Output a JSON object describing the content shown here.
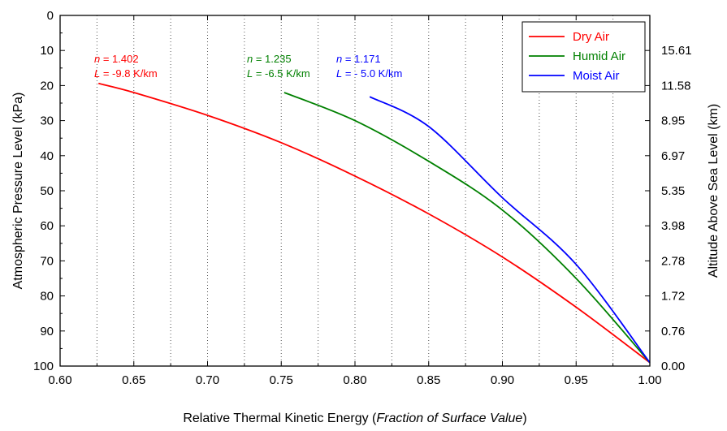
{
  "chart_data": {
    "type": "line",
    "xlabel_main": "Relative Thermal Kinetic Energy (",
    "xlabel_italic": "Fraction of Surface Value",
    "xlabel_end": ")",
    "ylabel_left": "Atmospheric Pressure Level (kPa)",
    "ylabel_right": "Altitude Above Sea Level (km)",
    "xlim": [
      0.6,
      1.0
    ],
    "ylim": [
      0,
      100
    ],
    "y_inverted": true,
    "x_ticks": [
      "0.60",
      "0.65",
      "0.70",
      "0.75",
      "0.80",
      "0.85",
      "0.90",
      "0.95",
      "1.00"
    ],
    "y_ticks_left": [
      "0",
      "10",
      "20",
      "30",
      "40",
      "50",
      "60",
      "70",
      "80",
      "90",
      "100"
    ],
    "y_ticks_right": [
      {
        "pressure": 10,
        "label": "15.61"
      },
      {
        "pressure": 20,
        "label": "11.58"
      },
      {
        "pressure": 30,
        "label": "8.95"
      },
      {
        "pressure": 40,
        "label": "6.97"
      },
      {
        "pressure": 50,
        "label": "5.35"
      },
      {
        "pressure": 60,
        "label": "3.98"
      },
      {
        "pressure": 70,
        "label": "2.78"
      },
      {
        "pressure": 80,
        "label": "1.72"
      },
      {
        "pressure": 90,
        "label": "0.76"
      },
      {
        "pressure": 100,
        "label": "0.00"
      }
    ],
    "grid": "vertical dotted",
    "legend_position": "top-right",
    "series": [
      {
        "name": "Dry Air",
        "color": "#ff0000",
        "n": 1.402,
        "x": [
          0.626,
          0.65,
          0.7,
          0.75,
          0.8,
          0.85,
          0.9,
          0.95,
          1.0
        ],
        "y": [
          19.4,
          22.0,
          28.5,
          36.3,
          45.8,
          56.6,
          68.9,
          83.2,
          99.0
        ]
      },
      {
        "name": "Humid Air",
        "color": "#008000",
        "n": 1.235,
        "x": [
          0.752,
          0.8,
          0.85,
          0.9,
          0.95,
          1.0
        ],
        "y": [
          22.0,
          30.0,
          41.6,
          55.5,
          75.0,
          99.0
        ]
      },
      {
        "name": "Moist Air",
        "color": "#0000ff",
        "n": 1.171,
        "x": [
          0.81,
          0.85,
          0.9,
          0.95,
          1.0
        ],
        "y": [
          23.2,
          31.7,
          52.0,
          71.0,
          99.0
        ]
      }
    ],
    "annotations": [
      {
        "color": "#ff0000",
        "n_label": "n",
        "n_value": " = 1.402",
        "l_label": "L",
        "l_value": " = -9.8 K/km"
      },
      {
        "color": "#008000",
        "n_label": "n",
        "n_value": " = 1.235",
        "l_label": "L",
        "l_value": " = -6.5 K/km"
      },
      {
        "color": "#0000ff",
        "n_label": "n",
        "n_value": " = 1.171",
        "l_label": "L",
        "l_value": " = - 5.0 K/km"
      }
    ]
  }
}
